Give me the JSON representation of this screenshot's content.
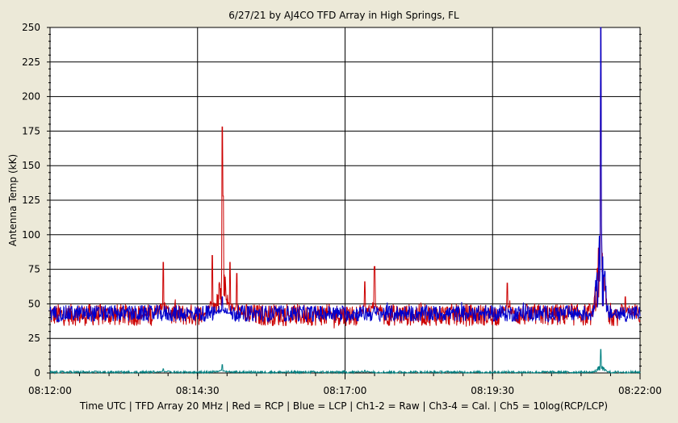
{
  "chart_data": {
    "type": "line",
    "title": "6/27/21  by  AJ4CO TFD Array  in  High Springs, FL",
    "ylabel": "Antenna Temp  (kK)",
    "xlabel": "Time UTC | TFD Array 20 MHz | Red = RCP | Blue = LCP | Ch1-2 = Raw | Ch3-4 = Cal. | Ch5 = 10log(RCP/LCP)",
    "xlim": [
      "08:12:00",
      "08:22:00"
    ],
    "ylim": [
      0,
      250
    ],
    "x_ticks": [
      "08:12:00",
      "08:14:30",
      "08:17:00",
      "08:19:30",
      "08:22:00"
    ],
    "y_ticks": [
      "0",
      "25",
      "50",
      "75",
      "100",
      "125",
      "150",
      "175",
      "200",
      "225",
      "250"
    ],
    "grid": true,
    "legend": "none",
    "series": [
      {
        "name": "RCP",
        "color": "#cc0000",
        "baseline": 42,
        "noise": 8,
        "spikes": [
          {
            "t": "08:13:55",
            "y": 80
          },
          {
            "t": "08:14:45",
            "y": 85
          },
          {
            "t": "08:14:55",
            "y": 178
          },
          {
            "t": "08:14:56",
            "y": 128
          },
          {
            "t": "08:15:03",
            "y": 80
          },
          {
            "t": "08:15:10",
            "y": 72
          },
          {
            "t": "08:17:20",
            "y": 66
          },
          {
            "t": "08:17:30",
            "y": 77
          },
          {
            "t": "08:19:45",
            "y": 65
          },
          {
            "t": "08:21:20",
            "y": 250
          },
          {
            "t": "08:21:45",
            "y": 55
          }
        ]
      },
      {
        "name": "LCP",
        "color": "#0000cc",
        "baseline": 43,
        "noise": 6,
        "spikes": [
          {
            "t": "08:14:55",
            "y": 55
          },
          {
            "t": "08:21:20",
            "y": 250
          }
        ]
      },
      {
        "name": "Ch5",
        "color": "#008080",
        "baseline": 0.5,
        "noise": 1,
        "spikes": [
          {
            "t": "08:13:55",
            "y": 3
          },
          {
            "t": "08:14:55",
            "y": 6
          },
          {
            "t": "08:17:20",
            "y": 2
          },
          {
            "t": "08:21:20",
            "y": 17
          }
        ]
      }
    ]
  }
}
